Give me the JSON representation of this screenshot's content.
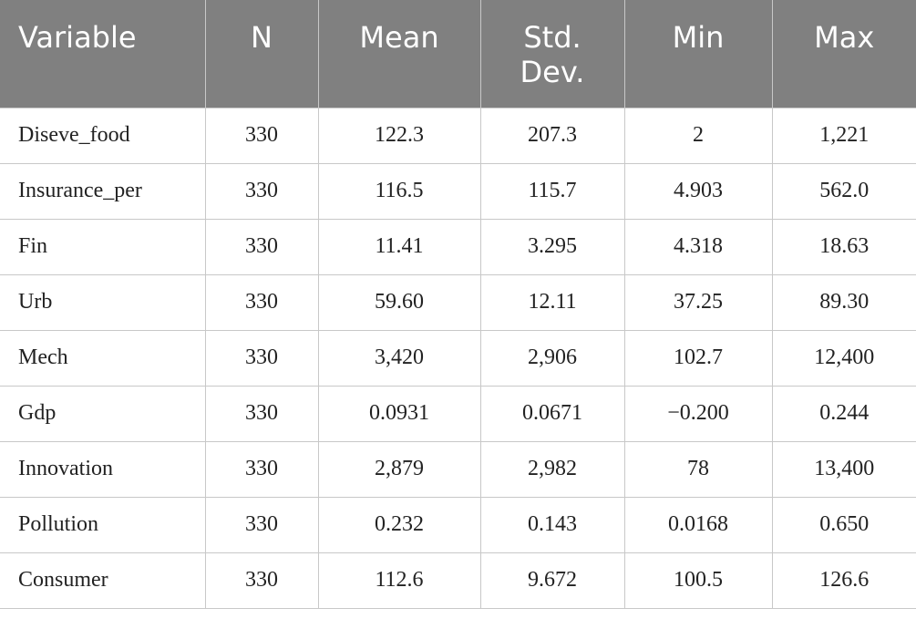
{
  "table": {
    "header": [
      "Variable",
      "N",
      "Mean",
      "Std. Dev.",
      "Min",
      "Max"
    ],
    "rows": [
      [
        "Diseve_food",
        "330",
        "122.3",
        "207.3",
        "2",
        "1,221"
      ],
      [
        "Insurance_per",
        "330",
        "116.5",
        "115.7",
        "4.903",
        "562.0"
      ],
      [
        "Fin",
        "330",
        "11.41",
        "3.295",
        "4.318",
        "18.63"
      ],
      [
        "Urb",
        "330",
        "59.60",
        "12.11",
        "37.25",
        "89.30"
      ],
      [
        "Mech",
        "330",
        "3,420",
        "2,906",
        "102.7",
        "12,400"
      ],
      [
        "Gdp",
        "330",
        "0.0931",
        "0.0671",
        "−0.200",
        "0.244"
      ],
      [
        "Innovation",
        "330",
        "2,879",
        "2,982",
        "78",
        "13,400"
      ],
      [
        "Pollution",
        "330",
        "0.232",
        "0.143",
        "0.0168",
        "0.650"
      ],
      [
        "Consumer",
        "330",
        "112.6",
        "9.672",
        "100.5",
        "126.6"
      ]
    ]
  }
}
